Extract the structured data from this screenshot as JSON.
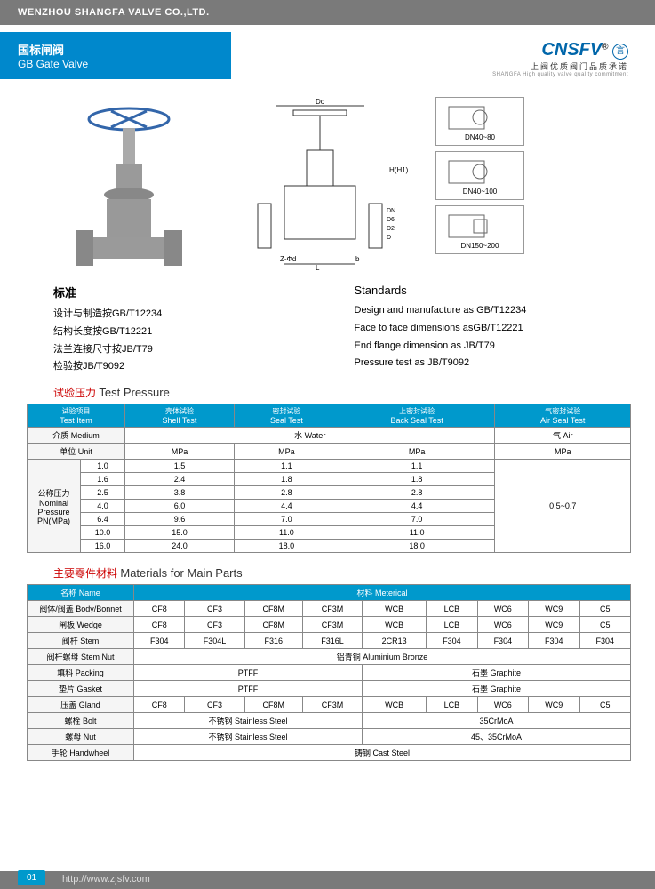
{
  "header": {
    "company": "WENZHOU SHANGFA VALVE CO.,LTD."
  },
  "title": {
    "cn": "国标闸阀",
    "en": "GB Gate Valve"
  },
  "logo": {
    "brand": "CNSFV",
    "reg": "®",
    "sub1": "上阀优质阀门品质承诺",
    "sub2": "SHANGFA High quality valve quality commitment"
  },
  "drawing_labels": {
    "do": "Do",
    "h1": "H(H1)",
    "dn": "DN",
    "d6": "D6",
    "d2": "D2",
    "d": "D",
    "z": "Z-Φd",
    "l": "L",
    "b": "b"
  },
  "small_drawings": [
    "DN40~80",
    "DN40~100",
    "DN150~200"
  ],
  "standards": {
    "cn_title": "标准",
    "cn_lines": [
      "设计与制造按GB/T12234",
      "结构长度按GB/T12221",
      "法兰连接尺寸按JB/T79",
      "检验按JB/T9092"
    ],
    "en_title": "Standards",
    "en_lines": [
      "Design and manufacture as GB/T12234",
      "Face to face dimensions asGB/T12221",
      "End flange dimension as JB/T79",
      "Pressure test as JB/T9092"
    ]
  },
  "test_pressure": {
    "title_cn": "试验压力",
    "title_en": "Test Pressure",
    "headers": [
      {
        "cn": "试验项目",
        "en": "Test Item"
      },
      {
        "cn": "壳体试验",
        "en": "Shell Test"
      },
      {
        "cn": "密封试验",
        "en": "Seal Test"
      },
      {
        "cn": "上密封试验",
        "en": "Back Seal Test"
      },
      {
        "cn": "气密封试验",
        "en": "Air Seal Test"
      }
    ],
    "medium_label": "介质 Medium",
    "water": "水 Water",
    "air": "气 Air",
    "unit_label": "单位 Unit",
    "unit": "MPa",
    "nominal_label_cn": "公称压力",
    "nominal_label_en": "Nominal\nPressure\nPN(MPa)",
    "rows": [
      {
        "pn": "1.0",
        "shell": "1.5",
        "seal": "1.1",
        "back": "1.1"
      },
      {
        "pn": "1.6",
        "shell": "2.4",
        "seal": "1.8",
        "back": "1.8"
      },
      {
        "pn": "2.5",
        "shell": "3.8",
        "seal": "2.8",
        "back": "2.8"
      },
      {
        "pn": "4.0",
        "shell": "6.0",
        "seal": "4.4",
        "back": "4.4"
      },
      {
        "pn": "6.4",
        "shell": "9.6",
        "seal": "7.0",
        "back": "7.0"
      },
      {
        "pn": "10.0",
        "shell": "15.0",
        "seal": "11.0",
        "back": "11.0"
      },
      {
        "pn": "16.0",
        "shell": "24.0",
        "seal": "18.0",
        "back": "18.0"
      }
    ],
    "air_value": "0.5~0.7"
  },
  "materials": {
    "title_cn": "主要零件材料",
    "title_en": "Materials for Main Parts",
    "name_header": "名称 Name",
    "material_header": "材料 Meterical",
    "rows": [
      {
        "name": "阀体/阀盖 Body/Bonnet",
        "cells": [
          "CF8",
          "CF3",
          "CF8M",
          "CF3M",
          "WCB",
          "LCB",
          "WC6",
          "WC9",
          "C5"
        ]
      },
      {
        "name": "闸板 Wedge",
        "cells": [
          "CF8",
          "CF3",
          "CF8M",
          "CF3M",
          "WCB",
          "LCB",
          "WC6",
          "WC9",
          "C5"
        ]
      },
      {
        "name": "阀杆 Stem",
        "cells": [
          "F304",
          "F304L",
          "F316",
          "F316L",
          "2CR13",
          "F304",
          "F304",
          "F304",
          "F304"
        ]
      },
      {
        "name": "阀杆螺母 Stem Nut",
        "span": "铝青铜 Aluminium Bronze"
      },
      {
        "name": "填料 Packing",
        "left": "PTFF",
        "right": "石墨 Graphite"
      },
      {
        "name": "垫片 Gasket",
        "left": "PTFF",
        "right": "石墨 Graphite"
      },
      {
        "name": "压盖 Gland",
        "cells": [
          "CF8",
          "CF3",
          "CF8M",
          "CF3M",
          "WCB",
          "LCB",
          "WC6",
          "WC9",
          "C5"
        ]
      },
      {
        "name": "螺栓 Bolt",
        "left": "不锈钢 Stainless Steel",
        "right": "35CrMoA"
      },
      {
        "name": "螺母 Nut",
        "left": "不锈钢 Stainless Steel",
        "right": "45、35CrMoA"
      },
      {
        "name": "手轮 Handwheel",
        "span": "铸钢 Cast Steel"
      }
    ]
  },
  "footer": {
    "page": "01",
    "url": "http://www.zjsfv.com"
  },
  "colors": {
    "primary": "#0099cc",
    "header_gray": "#7a7a7a",
    "accent": "#c00"
  }
}
